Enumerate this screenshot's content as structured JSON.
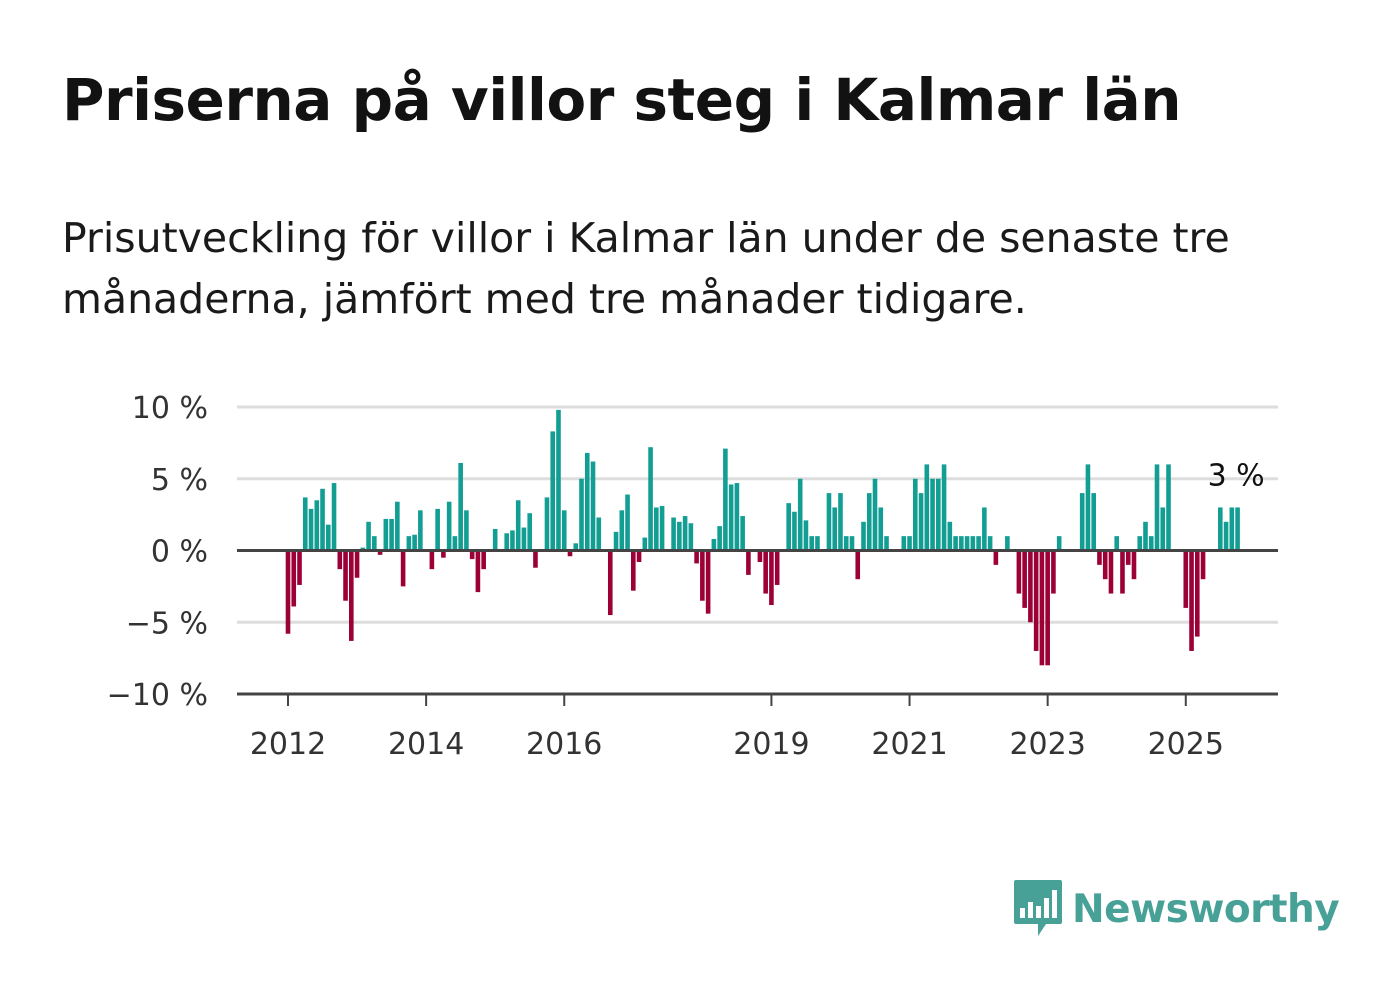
{
  "title": "Priserna på villor steg i Kalmar län",
  "subtitle": "Prisutveckling för villor i Kalmar län under de senaste tre månaderna, jämfört med tre månader tidigare.",
  "logo_text": "Newsworthy",
  "colors": {
    "positive": "#139e94",
    "negative": "#9c0036",
    "grid": "#dddddd",
    "axis": "#444444"
  },
  "chart_data": {
    "type": "bar",
    "unit": "%",
    "ylim": [
      -10,
      10
    ],
    "y_ticks": [
      10,
      5,
      0,
      -5,
      -10
    ],
    "y_tick_labels": [
      "10 %",
      "5 %",
      "0 %",
      "−5 %",
      "−10 %"
    ],
    "x_ticks": [
      {
        "year": 2012,
        "label": "2012"
      },
      {
        "year": 2014,
        "label": "2014"
      },
      {
        "year": 2016,
        "label": "2016"
      },
      {
        "year": 2019,
        "label": "2019"
      },
      {
        "year": 2021,
        "label": "2021"
      },
      {
        "year": 2023,
        "label": "2023"
      },
      {
        "year": 2025,
        "label": "2025"
      }
    ],
    "start": "2012-01",
    "values": [
      -5.8,
      -3.9,
      -2.4,
      3.7,
      2.9,
      3.5,
      4.3,
      1.8,
      4.7,
      -1.3,
      -3.5,
      -6.3,
      -1.9,
      0.2,
      2.0,
      1.0,
      -0.3,
      2.2,
      2.2,
      3.4,
      -2.5,
      1.0,
      1.1,
      2.8,
      0.0,
      -1.3,
      2.9,
      -0.5,
      3.4,
      1.0,
      6.1,
      2.8,
      -0.6,
      -2.9,
      -1.3,
      0.0,
      1.5,
      0.0,
      1.2,
      1.4,
      3.5,
      1.6,
      2.6,
      -1.2,
      0.0,
      3.7,
      8.3,
      9.8,
      2.8,
      -0.4,
      0.5,
      5.0,
      6.8,
      6.2,
      2.3,
      0.0,
      -4.5,
      1.3,
      2.8,
      3.9,
      -2.8,
      -0.8,
      0.9,
      7.2,
      3.0,
      3.1,
      0.0,
      2.3,
      2.0,
      2.4,
      1.9,
      -0.9,
      -3.5,
      -4.4,
      0.8,
      1.7,
      7.1,
      4.6,
      4.7,
      2.4,
      -1.7,
      0.0,
      -0.8,
      -3.0,
      -3.8,
      -2.4,
      0.0,
      3.3,
      2.7,
      5.0,
      2.1,
      1.0,
      1.0,
      0.0,
      4.0,
      3.0,
      4.0,
      1.0,
      1.0,
      -2.0,
      2.0,
      4.0,
      5.0,
      3.0,
      1.0,
      0.0,
      0.0,
      1.0,
      1.0,
      5.0,
      4.0,
      6.0,
      5.0,
      5.0,
      6.0,
      2.0,
      1.0,
      1.0,
      1.0,
      1.0,
      1.0,
      3.0,
      1.0,
      -1.0,
      0.0,
      1.0,
      0.0,
      -3.0,
      -4.0,
      -5.0,
      -7.0,
      -8.0,
      -8.0,
      -3.0,
      1.0,
      0.0,
      0.0,
      0.0,
      4.0,
      6.0,
      4.0,
      -1.0,
      -2.0,
      -3.0,
      1.0,
      -3.0,
      -1.0,
      -2.0,
      1.0,
      2.0,
      1.0,
      6.0,
      3.0,
      6.0,
      0.0,
      0.0,
      -4.0,
      -7.0,
      -6.0,
      -2.0,
      0.0,
      0.0,
      3.0,
      2.0,
      3.0,
      3.0
    ],
    "annotation": "3 %",
    "grid": true,
    "title": "",
    "xlabel": "",
    "ylabel": ""
  }
}
